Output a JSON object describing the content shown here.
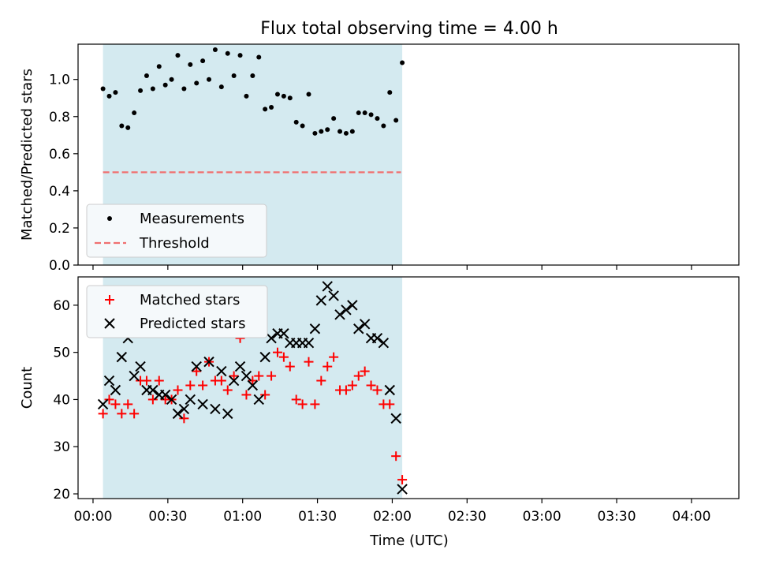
{
  "figure": {
    "title": "Flux total observing time = 4.00 h",
    "xlabel": "Time (UTC)"
  },
  "colors": {
    "shade": "#d4eaf0",
    "measurement": "#000000",
    "threshold": "#f07070",
    "matched": "#ff0000",
    "predicted": "#000000"
  },
  "chart_data": [
    {
      "type": "scatter",
      "panel": "top",
      "ylabel": "Matched/Predicted stars",
      "xlim": [
        -6,
        259
      ],
      "ylim": [
        0,
        1.19
      ],
      "yticks": [
        0.0,
        0.2,
        0.4,
        0.6,
        0.8,
        1.0
      ],
      "xticks": [
        "00:00",
        "00:30",
        "01:00",
        "01:30",
        "02:00",
        "02:30",
        "03:00",
        "03:30",
        "04:00"
      ],
      "xtick_values": [
        0,
        30,
        60,
        90,
        120,
        150,
        180,
        210,
        240
      ],
      "shaded_span": [
        4,
        124
      ],
      "threshold": {
        "name": "Threshold",
        "y": 0.5,
        "x_range": [
          4,
          123.5
        ]
      },
      "series": [
        {
          "name": "Measurements",
          "x": [
            "00:04",
            "00:06.5",
            "00:09",
            "00:11.5",
            "00:14",
            "00:16.5",
            "00:19",
            "00:21.5",
            "00:24",
            "00:26.5",
            "00:29",
            "00:31.5",
            "00:34",
            "00:36.5",
            "00:39",
            "00:41.5",
            "00:44",
            "00:46.5",
            "00:49",
            "00:51.5",
            "00:54",
            "00:56.5",
            "00:59",
            "01:01.5",
            "01:04",
            "01:06.5",
            "01:09",
            "01:11.5",
            "01:14",
            "01:16.5",
            "01:19",
            "01:21.5",
            "01:24",
            "01:26.5",
            "01:29",
            "01:31.5",
            "01:34",
            "01:36.5",
            "01:39",
            "01:41.5",
            "01:44",
            "01:46.5",
            "01:49",
            "01:51.5",
            "01:54",
            "01:56.5",
            "01:59",
            "02:01.5",
            "02:04"
          ],
          "y": [
            0.95,
            0.91,
            0.93,
            0.75,
            0.74,
            0.82,
            0.94,
            1.02,
            0.95,
            1.07,
            0.97,
            1.0,
            1.13,
            0.95,
            1.08,
            0.98,
            1.1,
            1.0,
            1.16,
            0.96,
            1.14,
            1.02,
            1.13,
            0.91,
            1.02,
            1.12,
            0.84,
            0.85,
            0.92,
            0.91,
            0.9,
            0.77,
            0.75,
            0.92,
            0.71,
            0.72,
            0.73,
            0.79,
            0.72,
            0.71,
            0.72,
            0.82,
            0.82,
            0.81,
            0.79,
            0.75,
            0.93,
            0.78,
            1.09
          ]
        }
      ],
      "legend": {
        "placement": "lower-left"
      }
    },
    {
      "type": "scatter",
      "panel": "bottom",
      "ylabel": "Count",
      "xlabel": "Time (UTC)",
      "xlim": [
        -6,
        259
      ],
      "ylim": [
        19,
        66
      ],
      "yticks": [
        20,
        30,
        40,
        50,
        60
      ],
      "xticks": [
        "00:00",
        "00:30",
        "01:00",
        "01:30",
        "02:00",
        "02:30",
        "03:00",
        "03:30",
        "04:00"
      ],
      "xtick_values": [
        0,
        30,
        60,
        90,
        120,
        150,
        180,
        210,
        240
      ],
      "shaded_span": [
        4,
        124
      ],
      "series": [
        {
          "name": "Matched stars",
          "marker": "plus",
          "x": [
            4,
            6.5,
            9,
            11.5,
            14,
            16.5,
            19,
            21.5,
            24,
            26.5,
            29,
            31.5,
            34,
            36.5,
            39,
            41.5,
            44,
            46.5,
            49,
            51.5,
            54,
            56.5,
            59,
            61.5,
            64,
            66.5,
            69,
            71.5,
            74,
            76.5,
            79,
            81.5,
            84,
            86.5,
            89,
            91.5,
            94,
            96.5,
            99,
            101.5,
            104,
            106.5,
            109,
            111.5,
            114,
            116.5,
            119,
            121.5,
            124
          ],
          "y": [
            37,
            40,
            39,
            37,
            39,
            37,
            44,
            44,
            40,
            44,
            40,
            40,
            42,
            36,
            43,
            46,
            43,
            48,
            44,
            44,
            42,
            45,
            53,
            41,
            44,
            45,
            41,
            45,
            50,
            49,
            47,
            40,
            39,
            48,
            39,
            44,
            47,
            49,
            42,
            42,
            43,
            45,
            46,
            43,
            42,
            39,
            39,
            28,
            23
          ]
        },
        {
          "name": "Predicted stars",
          "marker": "x",
          "x": [
            4,
            6.5,
            9,
            11.5,
            14,
            16.5,
            19,
            21.5,
            24,
            26.5,
            29,
            31.5,
            34,
            36.5,
            39,
            41.5,
            44,
            46.5,
            49,
            51.5,
            54,
            56.5,
            59,
            61.5,
            64,
            66.5,
            69,
            71.5,
            74,
            76.5,
            79,
            81.5,
            84,
            86.5,
            89,
            91.5,
            94,
            96.5,
            99,
            101.5,
            104,
            106.5,
            109,
            111.5,
            114,
            116.5,
            119,
            121.5,
            124
          ],
          "y": [
            39,
            44,
            42,
            49,
            53,
            45,
            47,
            42,
            42,
            41,
            41,
            40,
            37,
            38,
            40,
            47,
            39,
            48,
            38,
            46,
            37,
            44,
            47,
            45,
            43,
            40,
            49,
            53,
            54,
            54,
            52,
            52,
            52,
            52,
            55,
            61,
            64,
            62,
            58,
            59,
            60,
            55,
            56,
            53,
            53,
            52,
            42,
            36,
            21
          ]
        }
      ],
      "legend": {
        "placement": "upper-left"
      }
    }
  ]
}
